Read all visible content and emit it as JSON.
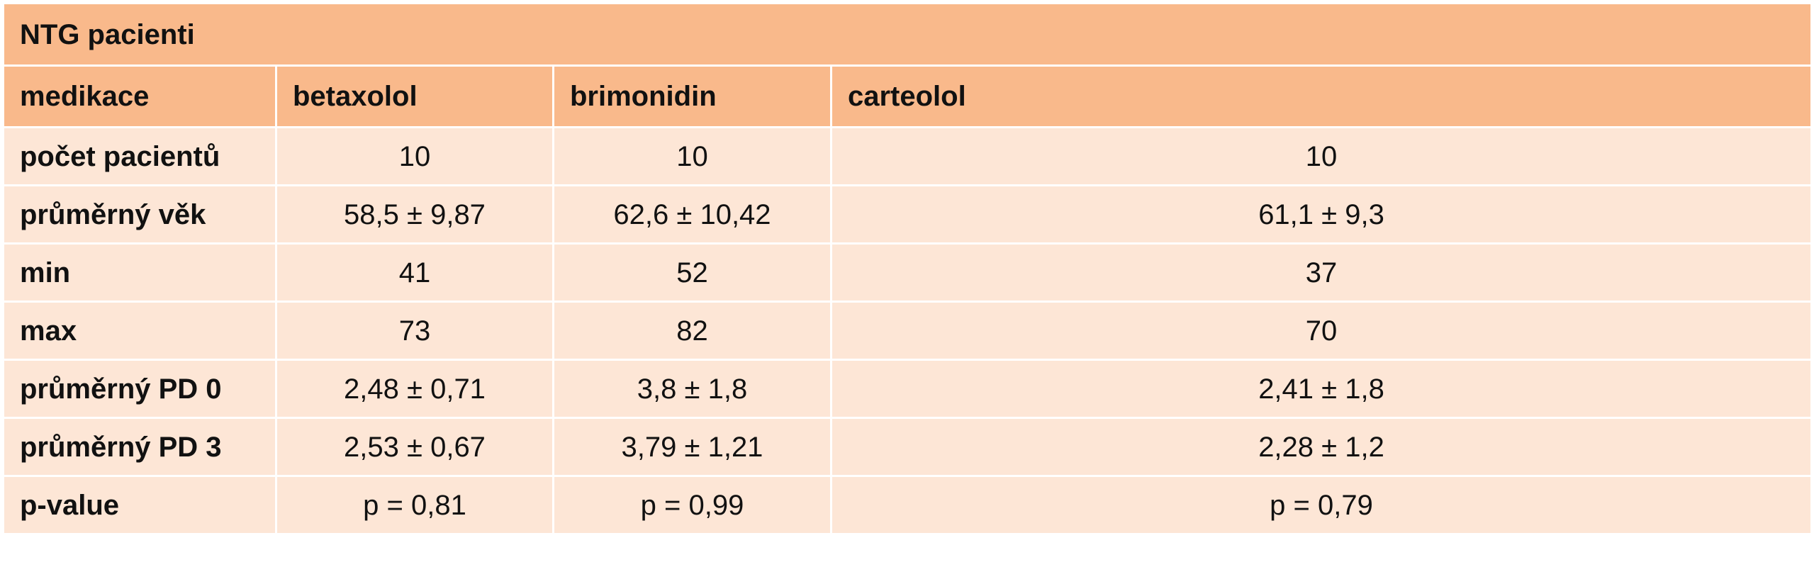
{
  "table": {
    "title": "NTG pacienti",
    "columns": [
      "medikace",
      "betaxolol",
      "brimonidin",
      "carteolol"
    ],
    "rows": [
      {
        "label": "počet pacientů",
        "values": [
          "10",
          "10",
          "10"
        ]
      },
      {
        "label": "průměrný věk",
        "values": [
          "58,5 ± 9,87",
          "62,6 ± 10,42",
          "61,1 ± 9,3"
        ]
      },
      {
        "label": "min",
        "values": [
          "41",
          "52",
          "37"
        ]
      },
      {
        "label": "max",
        "values": [
          "73",
          "82",
          "70"
        ]
      },
      {
        "label": "průměrný PD 0",
        "values": [
          "2,48 ± 0,71",
          "3,8 ± 1,8",
          "2,41 ± 1,8"
        ]
      },
      {
        "label": "průměrný PD 3",
        "values": [
          "2,53 ± 0,67",
          "3,79 ± 1,21",
          "2,28 ± 1,2"
        ]
      },
      {
        "label": "p-value",
        "values": [
          "p = 0,81",
          "p = 0,99",
          "p = 0,79"
        ]
      }
    ]
  },
  "colors": {
    "header_background": "#f9b98b",
    "body_background": "#fde6d6",
    "grid_lines": "#ffffff",
    "text": "#111111"
  }
}
